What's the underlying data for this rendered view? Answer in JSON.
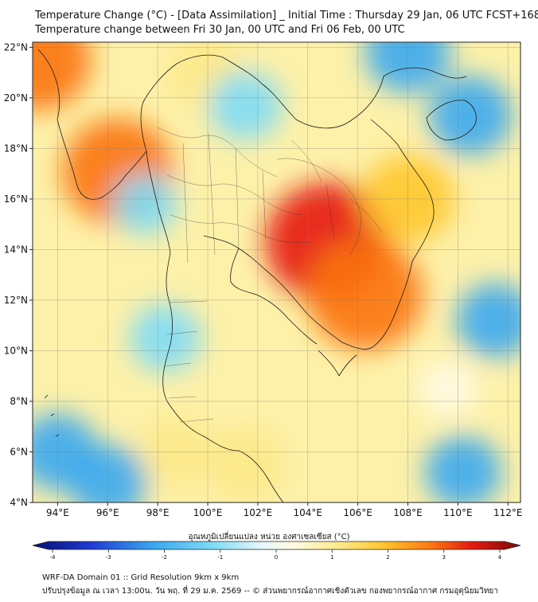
{
  "header": {
    "title_line1": "Temperature Change (°C) - [Data Assimilation] _ Initial Time : Thursday 29 Jan, 06 UTC FCST+168",
    "title_line2": "Temperature change between Fri 30 Jan, 00 UTC and Fri 06 Feb, 00 UTC"
  },
  "map": {
    "lon_range": [
      93,
      112.5
    ],
    "lat_range": [
      4,
      22.2
    ],
    "lon_ticks": [
      "94°E",
      "96°E",
      "98°E",
      "100°E",
      "102°E",
      "104°E",
      "106°E",
      "108°E",
      "110°E",
      "112°E"
    ],
    "lat_ticks": [
      "22°N",
      "20°N",
      "18°N",
      "16°N",
      "14°N",
      "12°N",
      "10°N",
      "8°N",
      "6°N",
      "4°N"
    ],
    "grid": true,
    "regions": [
      {
        "lon": 104.8,
        "lat": 14.3,
        "value": 3.2
      },
      {
        "lon": 106.3,
        "lat": 12.2,
        "value": 2.8
      },
      {
        "lon": 96.4,
        "lat": 17.1,
        "value": 2.6
      },
      {
        "lon": 93.2,
        "lat": 21.5,
        "value": 2.4
      },
      {
        "lon": 108.0,
        "lat": 16.0,
        "value": 1.8
      },
      {
        "lon": 100.0,
        "lat": 21.0,
        "value": 1.2
      },
      {
        "lon": 101.5,
        "lat": 5.5,
        "value": 1.2
      },
      {
        "lon": 98.8,
        "lat": 6.0,
        "value": 1.0
      },
      {
        "lon": 110.5,
        "lat": 19.3,
        "value": -1.4
      },
      {
        "lon": 108.0,
        "lat": 21.8,
        "value": -1.5
      },
      {
        "lon": 101.5,
        "lat": 19.7,
        "value": -1.0
      },
      {
        "lon": 97.5,
        "lat": 15.8,
        "value": -0.6
      },
      {
        "lon": 98.3,
        "lat": 10.5,
        "value": -0.9
      },
      {
        "lon": 111.5,
        "lat": 11.2,
        "value": -1.2
      },
      {
        "lon": 94.0,
        "lat": 6.0,
        "value": -1.3
      },
      {
        "lon": 96.0,
        "lat": 4.8,
        "value": -1.2
      },
      {
        "lon": 110.2,
        "lat": 5.2,
        "value": -1.1
      },
      {
        "lon": 109.6,
        "lat": 8.5,
        "value": 0.4
      }
    ]
  },
  "colorbar": {
    "label": "อุณหภูมิเปลี่ยนแปลง หน่วย องศาเซลเซียส (°C)",
    "ticks": [
      "-4",
      "-3",
      "-2",
      "-1",
      "0",
      "1",
      "2",
      "3",
      "4"
    ],
    "range": [
      -4,
      4
    ]
  },
  "footer": {
    "line1": "WRF-DA Domain 01 :: Grid Resolution 9km x 9km",
    "line2": "ปรับปรุงข้อมูล ณ เวลา 13:00น. วัน พฤ. ที่ 29 ม.ค. 2569 -- © ส่วนพยากรณ์อากาศเชิงตัวเลข กองพยากรณ์อากาศ กรมอุตุนิยมวิทยา"
  }
}
